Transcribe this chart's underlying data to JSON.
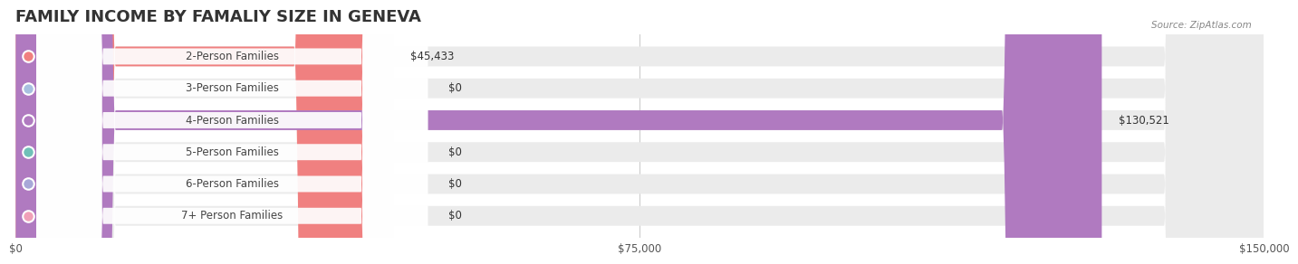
{
  "title": "FAMILY INCOME BY FAMALIY SIZE IN GENEVA",
  "source": "Source: ZipAtlas.com",
  "categories": [
    "2-Person Families",
    "3-Person Families",
    "4-Person Families",
    "5-Person Families",
    "6-Person Families",
    "7+ Person Families"
  ],
  "values": [
    45433,
    0,
    130521,
    0,
    0,
    0
  ],
  "bar_colors": [
    "#F08080",
    "#A8C0E0",
    "#B07AC0",
    "#70C0B8",
    "#A8A8D8",
    "#F0A0B8"
  ],
  "label_colors": [
    "#F08080",
    "#A8C0E0",
    "#B07AC0",
    "#70C0B8",
    "#A8A8D8",
    "#F0A0B8"
  ],
  "bar_bg_color": "#EBEBEB",
  "xlim": [
    0,
    150000
  ],
  "xtick_values": [
    0,
    75000,
    150000
  ],
  "xtick_labels": [
    "$0",
    "$75,000",
    "$150,000"
  ],
  "value_labels": [
    "$45,433",
    "$0",
    "$130,521",
    "$0",
    "$0",
    "$0"
  ],
  "background_color": "#FFFFFF",
  "title_fontsize": 13,
  "bar_height": 0.62,
  "fig_width": 14.06,
  "fig_height": 3.05
}
